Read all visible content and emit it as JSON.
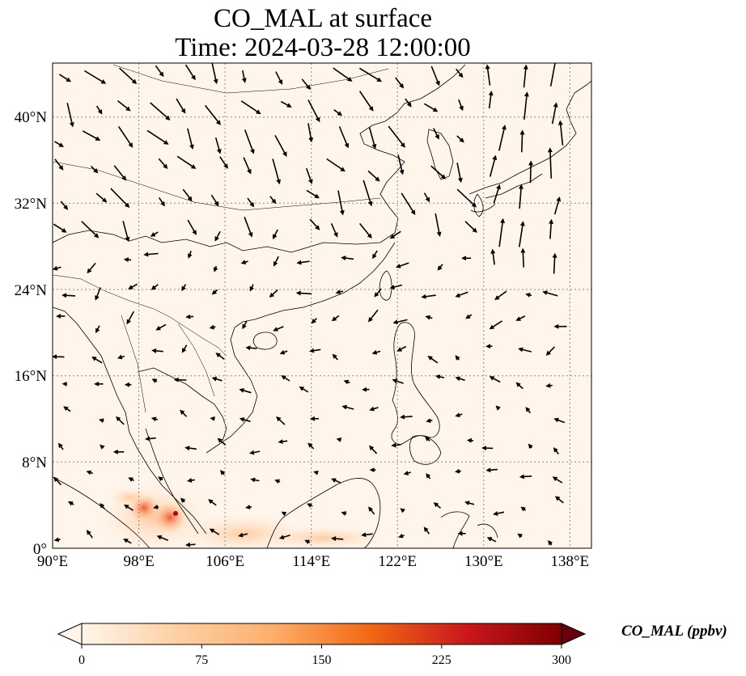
{
  "title": "CO_MAL at surface",
  "subtitle": "Time: 2024-03-28 12:00:00",
  "colors": {
    "ocean_bg": "#fff5eb",
    "cmap": [
      "#fff5eb",
      "#fdd0a2",
      "#fd8d3c",
      "#d94801",
      "#a50f15",
      "#67000d"
    ]
  },
  "map": {
    "lon_range": [
      90,
      140
    ],
    "lat_range": [
      0,
      45
    ],
    "x_ticks": [
      "90°E",
      "98°E",
      "106°E",
      "114°E",
      "122°E",
      "130°E",
      "138°E"
    ],
    "y_ticks": [
      "0°",
      "8°N",
      "16°N",
      "24°N",
      "32°N",
      "40°N"
    ]
  },
  "colorbar": {
    "label": "CO_MAL (ppbv)",
    "ticks": [
      "0",
      "75",
      "150",
      "225",
      "300"
    ],
    "range": [
      0,
      300
    ],
    "extend": "both"
  }
}
